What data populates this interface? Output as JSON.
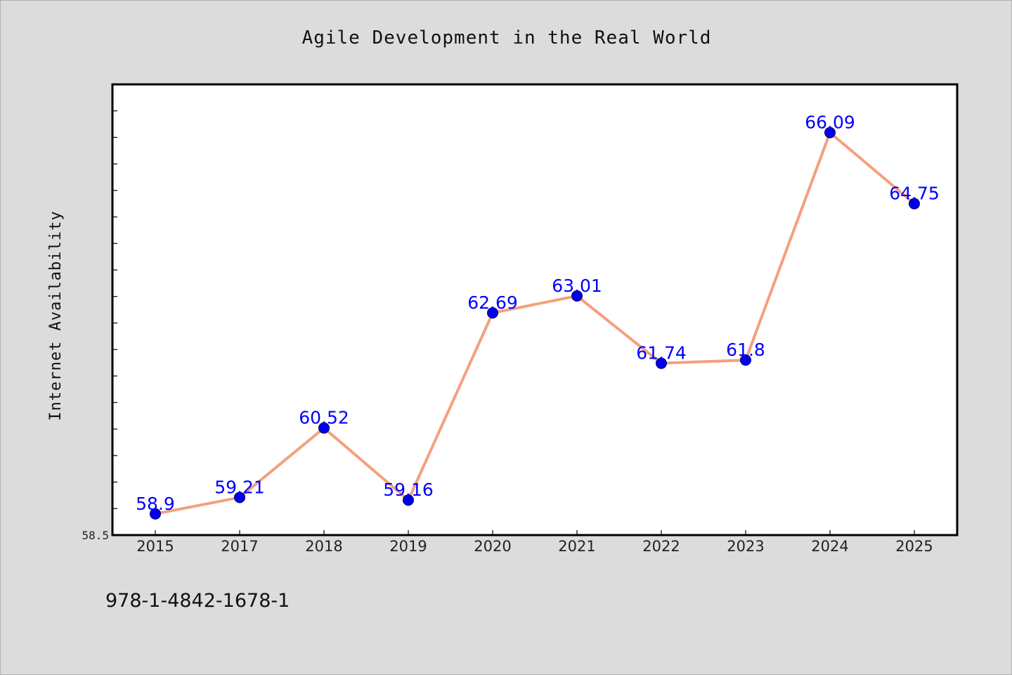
{
  "chart_data": {
    "type": "line",
    "title": "Agile Development in the Real World",
    "xlabel": "",
    "ylabel": "Internet Availability",
    "categories": [
      "2015",
      "2017",
      "2018",
      "2019",
      "2020",
      "2021",
      "2022",
      "2023",
      "2024",
      "2025"
    ],
    "series": [
      {
        "values": [
          58.9,
          59.21,
          60.52,
          59.16,
          62.69,
          63.01,
          61.74,
          61.8,
          66.09,
          64.75
        ],
        "labels": [
          "58.9",
          "59.21",
          "60.52",
          "59.16",
          "62.69",
          "63.01",
          "61.74",
          "61.8",
          "66.09",
          "64.75"
        ]
      }
    ],
    "ylim": [
      58.5,
      67.0
    ],
    "yticks_labeled": [
      "58.5"
    ],
    "grid": false,
    "line_color": "#f4a07f",
    "marker_color": "#0000ee",
    "label_color": "#0000ff"
  },
  "footer": {
    "isbn": "978-1-4842-1678-1"
  }
}
